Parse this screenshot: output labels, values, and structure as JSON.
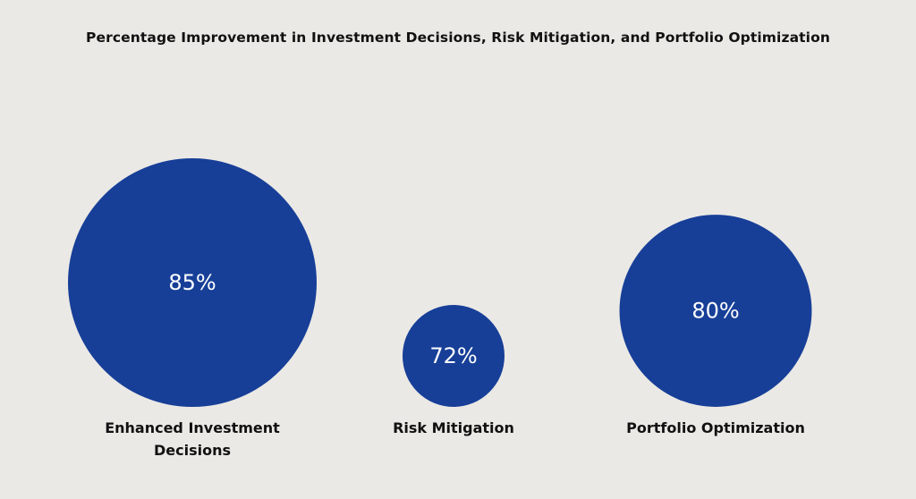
{
  "chart_data": {
    "type": "bubble",
    "title": "Percentage Improvement in Investment Decisions, Risk Mitigation, and Portfolio Optimization",
    "categories": [
      "Enhanced Investment Decisions",
      "Risk Mitigation",
      "Portfolio Optimization"
    ],
    "values": [
      85,
      72,
      80
    ],
    "value_labels": [
      "85%",
      "72%",
      "80%"
    ],
    "color": "#173f98",
    "grid": false,
    "legend": "none"
  }
}
